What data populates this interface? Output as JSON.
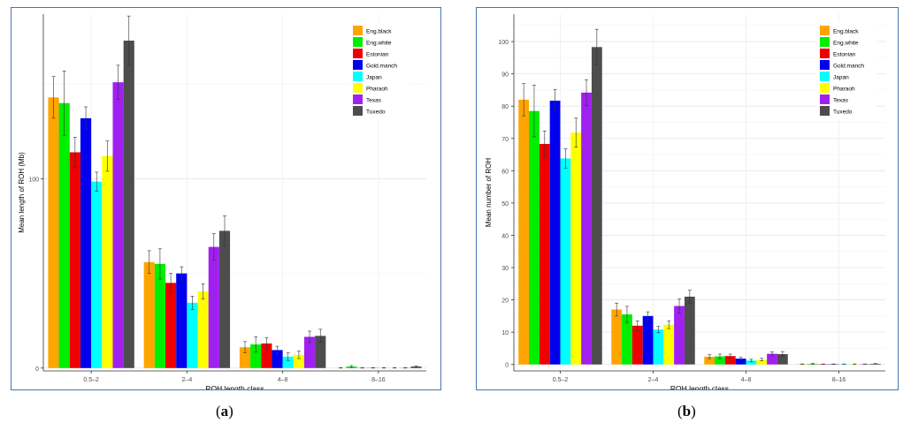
{
  "colors": {
    "Eng.black": "#FFA500",
    "Eng.white": "#00EE00",
    "Estonian": "#EE0000",
    "Gold.manch": "#0000EE",
    "Japan": "#00FFFF",
    "Pharaoh": "#FFFF00",
    "Texas": "#A020F0",
    "Tuxedo": "#4D4D4D"
  },
  "captions": {
    "a": {
      "open": "(",
      "letter": "a",
      "close": ")"
    },
    "b": {
      "open": "(",
      "letter": "b",
      "close": ")"
    }
  },
  "chart_data": [
    {
      "id": "a",
      "type": "bar",
      "title": "",
      "xlabel": "ROH length class",
      "ylabel": "Mean length of ROH (Mb)",
      "categories": [
        "0.5–2",
        "2–4",
        "4–8",
        "8–16"
      ],
      "ylim": [
        -1.5,
        187
      ],
      "yticks": [
        0,
        100
      ],
      "grid": true,
      "legend": "top-right",
      "series": [
        {
          "name": "Eng.black",
          "values": [
            143,
            56,
            11,
            0.1
          ],
          "err": [
            11,
            6,
            3,
            0.1
          ]
        },
        {
          "name": "Eng.white",
          "values": [
            140,
            55,
            12.5,
            0.8
          ],
          "err": [
            17,
            8,
            4,
            0.5
          ]
        },
        {
          "name": "Estonian",
          "values": [
            114,
            45,
            13,
            0.1
          ],
          "err": [
            8,
            5,
            3,
            0.1
          ]
        },
        {
          "name": "Gold.manch",
          "values": [
            132,
            50,
            9.5,
            0.1
          ],
          "err": [
            6,
            3.5,
            2,
            0.1
          ]
        },
        {
          "name": "Japan",
          "values": [
            98.5,
            34.5,
            6,
            0.1
          ],
          "err": [
            5,
            3.5,
            2,
            0.1
          ]
        },
        {
          "name": "Pharaoh",
          "values": [
            112,
            40.5,
            7,
            0.1
          ],
          "err": [
            8,
            4,
            2,
            0.1
          ]
        },
        {
          "name": "Texas",
          "values": [
            151,
            64,
            16.5,
            0.1
          ],
          "err": [
            9,
            7,
            3,
            0.1
          ]
        },
        {
          "name": "Tuxedo",
          "values": [
            173,
            72.5,
            17,
            0.8
          ],
          "err": [
            13,
            8,
            3.5,
            0.4
          ]
        }
      ]
    },
    {
      "id": "b",
      "type": "bar",
      "title": "",
      "xlabel": "ROH length class",
      "ylabel": "Mean number of ROH",
      "categories": [
        "0.5–2",
        "2–4",
        "4–8",
        "8–16"
      ],
      "ylim": [
        -2,
        108.5
      ],
      "yticks": [
        0,
        10,
        20,
        30,
        40,
        50,
        60,
        70,
        80,
        90,
        100
      ],
      "grid": true,
      "legend": "top-right",
      "series": [
        {
          "name": "Eng.black",
          "values": [
            82,
            17,
            2.4,
            0.1
          ],
          "err": [
            5,
            2,
            0.6,
            0.05
          ]
        },
        {
          "name": "Eng.white",
          "values": [
            78.5,
            15.5,
            2.5,
            0.2
          ],
          "err": [
            8,
            2.5,
            0.7,
            0.1
          ]
        },
        {
          "name": "Estonian",
          "values": [
            68.3,
            12,
            2.6,
            0.1
          ],
          "err": [
            4,
            1.5,
            0.6,
            0.05
          ]
        },
        {
          "name": "Gold.manch",
          "values": [
            81.7,
            15,
            1.8,
            0.1
          ],
          "err": [
            3.5,
            1.3,
            0.4,
            0.05
          ]
        },
        {
          "name": "Japan",
          "values": [
            63.8,
            10.8,
            1.2,
            0.1
          ],
          "err": [
            3,
            1,
            0.4,
            0.05
          ]
        },
        {
          "name": "Pharaoh",
          "values": [
            71.8,
            12.3,
            1.5,
            0.1
          ],
          "err": [
            4.5,
            1.2,
            0.4,
            0.05
          ]
        },
        {
          "name": "Texas",
          "values": [
            84.2,
            18.1,
            3.3,
            0.1
          ],
          "err": [
            4,
            2.2,
            0.6,
            0.05
          ]
        },
        {
          "name": "Tuxedo",
          "values": [
            98.3,
            21,
            3.2,
            0.2
          ],
          "err": [
            5.5,
            2,
            0.8,
            0.1
          ]
        }
      ]
    }
  ]
}
